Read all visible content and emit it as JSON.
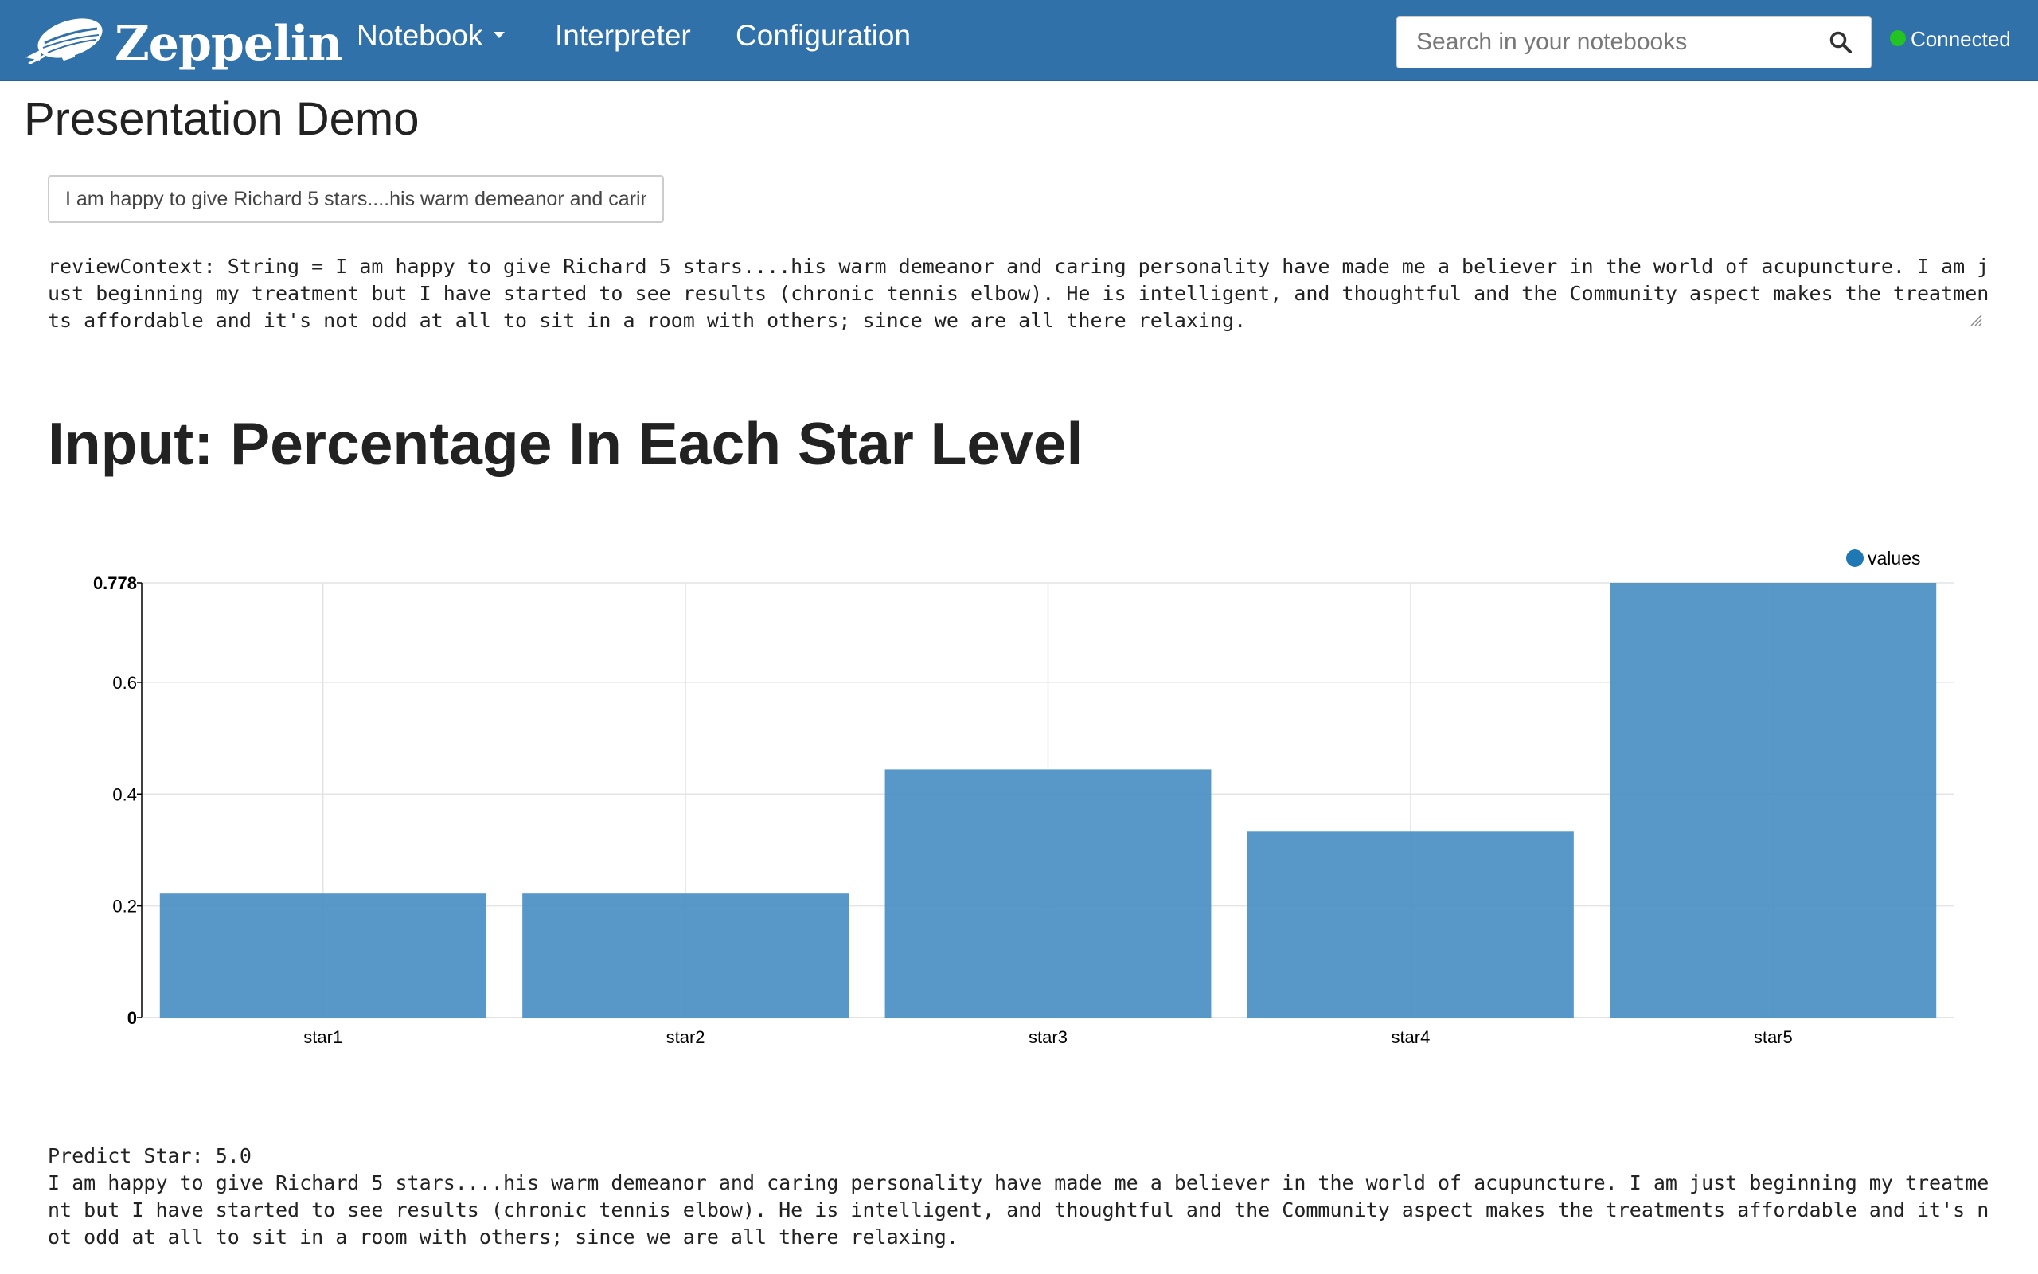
{
  "navbar": {
    "brand": "Zeppelin",
    "menu": [
      {
        "label": "Notebook",
        "dropdown": true
      },
      {
        "label": "Interpreter",
        "dropdown": false
      },
      {
        "label": "Configuration",
        "dropdown": false
      }
    ],
    "search": {
      "placeholder": "Search in your notebooks",
      "icon": "search-icon"
    },
    "status": {
      "label": "Connected",
      "color": "#22c322"
    }
  },
  "notebook": {
    "title": "Presentation Demo"
  },
  "paragraph1": {
    "input_value": "I am happy to give Richard 5 stars....his warm demeanor and caring",
    "output": "reviewContext: String = I am happy to give Richard 5 stars....his warm demeanor and caring personality have made me a believer in the world of acupuncture. I am just beginning my treatment but I have started to see results (chronic tennis elbow). He is intelligent, and thoughtful and the Community aspect makes the treatments affordable and it's not odd at all to sit in a room with others; since we are all there relaxing."
  },
  "paragraph2": {
    "heading": "Input: Percentage In Each Star Level"
  },
  "chart_data": {
    "type": "bar",
    "categories": [
      "star1",
      "star2",
      "star3",
      "star4",
      "star5"
    ],
    "series": [
      {
        "name": "values",
        "values": [
          0.222,
          0.222,
          0.444,
          0.333,
          0.778
        ],
        "color": "#4a90c4"
      }
    ],
    "yticks": [
      "0",
      "0.2",
      "0.4",
      "0.6",
      "0.778"
    ],
    "ylim": [
      0,
      0.778
    ],
    "grid": true,
    "legend": "top-right"
  },
  "paragraph3": {
    "prediction": "Predict Star: 5.0",
    "text": "I am happy to give Richard 5 stars....his warm demeanor and caring personality have made me a believer in the world of acupuncture. I am just beginning my treatment but I have started to see results (chronic tennis elbow). He is intelligent, and thoughtful and the Community aspect makes the treatments affordable and it's not odd at all to sit in a room with others; since we are all there relaxing."
  }
}
